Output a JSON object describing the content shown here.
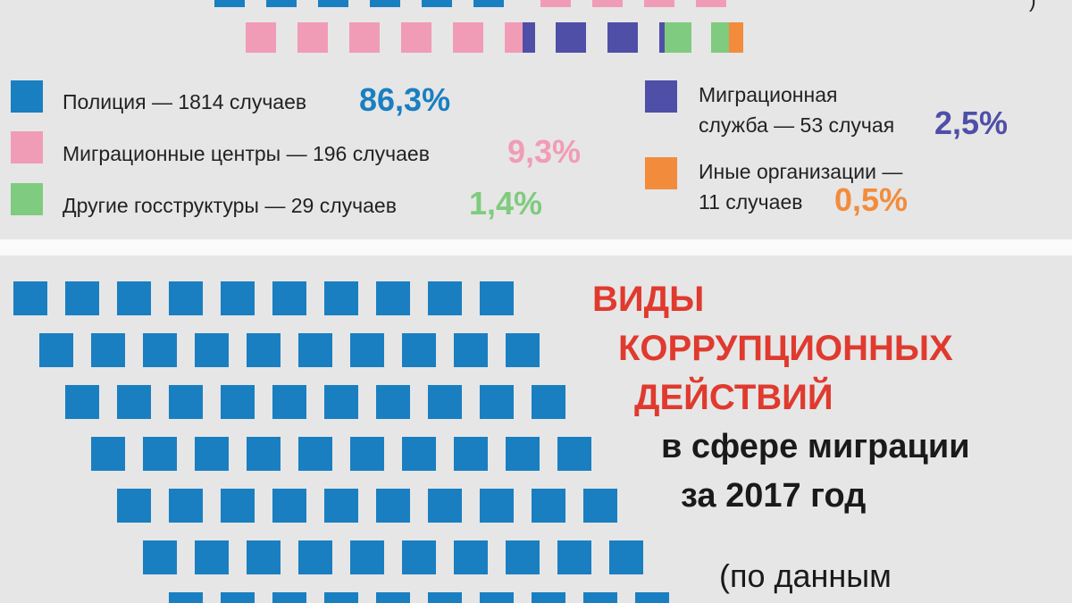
{
  "legend": [
    {
      "label": "Полиция — 1814 случаев",
      "percent": "86,3%"
    },
    {
      "label": "Миграционные центры — 196 случаев",
      "percent": "9,3%"
    },
    {
      "label": "Другие госструктуры — 29 случаев",
      "percent": "1,4%"
    },
    {
      "label_lines": [
        "Миграционная",
        "служба — 53 случая"
      ],
      "percent": "2,5%"
    },
    {
      "label_lines": [
        "Иные организации —",
        "11 случаев"
      ],
      "percent": "0,5%"
    }
  ],
  "corner_text": ")",
  "title": {
    "red_lines": [
      "ВИДЫ",
      "КОРРУПЦИОННЫХ",
      "ДЕЙСТВИЙ"
    ],
    "black_lines": [
      "в сфере миграции",
      "за 2017 год"
    ],
    "source": "(по данным"
  }
}
